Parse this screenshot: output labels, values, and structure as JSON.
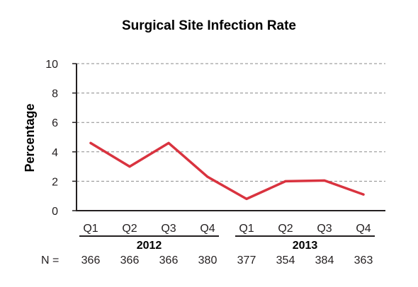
{
  "chart_data": {
    "type": "line",
    "title": "Surgical Site Infection Rate",
    "ylabel": "Percentage",
    "xlabel": "",
    "ylim": [
      0,
      10
    ],
    "yticks": [
      0,
      2,
      4,
      6,
      8,
      10
    ],
    "grid": "dashed horizontal",
    "categories": [
      "Q1",
      "Q2",
      "Q3",
      "Q4",
      "Q1",
      "Q2",
      "Q3",
      "Q4"
    ],
    "groups": [
      {
        "label": "2012",
        "start": 0,
        "end": 3
      },
      {
        "label": "2013",
        "start": 4,
        "end": 7
      }
    ],
    "n_label": "N =",
    "n_values": [
      "366",
      "366",
      "366",
      "380",
      "377",
      "354",
      "384",
      "363"
    ],
    "series": [
      {
        "values": [
          4.6,
          3.0,
          4.6,
          2.3,
          0.8,
          2.0,
          2.05,
          1.1
        ],
        "color": "#d9333f"
      }
    ]
  }
}
